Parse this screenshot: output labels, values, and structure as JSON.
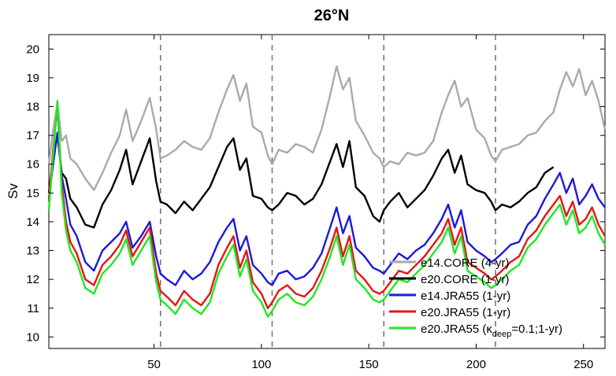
{
  "chart_data": {
    "type": "line",
    "title": "26°N",
    "xlabel": "",
    "ylabel": "Sv",
    "xlim": [
      1,
      260
    ],
    "ylim": [
      9.6,
      20.5
    ],
    "xticks": [
      50,
      100,
      150,
      200,
      250
    ],
    "yticks": [
      10,
      11,
      12,
      13,
      14,
      15,
      16,
      17,
      18,
      19,
      20
    ],
    "grid": false,
    "legend_position": "bottom-right",
    "cycle_boundaries": [
      53,
      105,
      157,
      209
    ],
    "series": [
      {
        "name": "e14.CORE (4-yr)",
        "color": "#aaaaaa",
        "label_main": "e14.CORE (4-yr)",
        "x": [
          1,
          3,
          5,
          7,
          9,
          11,
          14,
          18,
          22,
          26,
          30,
          34,
          37,
          40,
          44,
          48,
          51,
          53,
          56,
          60,
          64,
          68,
          72,
          76,
          80,
          84,
          87,
          90,
          93,
          96,
          100,
          103,
          105,
          108,
          112,
          116,
          120,
          124,
          128,
          132,
          135,
          138,
          141,
          144,
          148,
          152,
          155,
          157,
          160,
          164,
          168,
          172,
          176,
          180,
          184,
          187,
          190,
          193,
          196,
          200,
          204,
          207,
          209,
          212,
          216,
          220,
          224,
          228,
          232,
          236,
          239,
          242,
          245,
          248,
          251,
          254,
          257,
          260
        ],
        "y": [
          16.0,
          17.2,
          18.1,
          16.8,
          17.0,
          16.2,
          16.0,
          15.5,
          15.1,
          15.7,
          16.4,
          17.0,
          17.9,
          16.8,
          17.5,
          18.3,
          17.2,
          16.2,
          16.3,
          16.5,
          16.8,
          16.6,
          16.5,
          16.9,
          17.8,
          18.6,
          19.1,
          18.2,
          18.8,
          17.3,
          17.1,
          16.3,
          16.0,
          16.5,
          16.4,
          16.7,
          16.6,
          16.4,
          17.2,
          18.4,
          19.4,
          18.6,
          19.0,
          17.5,
          17.0,
          16.4,
          16.2,
          15.9,
          16.1,
          16.0,
          16.4,
          16.3,
          16.4,
          16.8,
          17.8,
          18.4,
          18.9,
          18.0,
          18.3,
          17.2,
          16.9,
          16.3,
          16.1,
          16.5,
          16.6,
          16.7,
          17.0,
          17.1,
          17.5,
          17.8,
          18.6,
          19.2,
          18.7,
          19.3,
          18.4,
          18.9,
          18.2,
          17.2
        ]
      },
      {
        "name": "e20.CORE (1-yr)",
        "color": "#000000",
        "label_main": "e20.CORE (1-yr)",
        "x": [
          1,
          3,
          5,
          7,
          9,
          11,
          14,
          18,
          22,
          26,
          30,
          34,
          37,
          40,
          44,
          48,
          51,
          53,
          56,
          60,
          64,
          68,
          72,
          76,
          80,
          84,
          87,
          90,
          93,
          96,
          100,
          103,
          105,
          108,
          112,
          116,
          120,
          124,
          128,
          132,
          135,
          138,
          141,
          144,
          148,
          152,
          155,
          157,
          160,
          164,
          168,
          172,
          176,
          180,
          184,
          187,
          190,
          193,
          196,
          200,
          204,
          207,
          209,
          212,
          216,
          220,
          224,
          228,
          232,
          236,
          239,
          242,
          245,
          248,
          251,
          254,
          257,
          260
        ],
        "y": [
          15.0,
          16.2,
          17.0,
          15.7,
          15.5,
          14.8,
          14.5,
          13.9,
          13.8,
          14.6,
          15.1,
          15.8,
          16.5,
          15.3,
          16.1,
          16.9,
          15.4,
          14.7,
          14.6,
          14.3,
          14.7,
          14.4,
          14.8,
          15.2,
          15.9,
          16.6,
          16.9,
          15.8,
          16.2,
          14.9,
          14.8,
          14.5,
          14.4,
          14.6,
          15.0,
          14.9,
          14.6,
          14.8,
          15.3,
          16.1,
          16.7,
          15.9,
          16.8,
          15.2,
          14.9,
          14.2,
          14.0,
          14.4,
          14.7,
          15.0,
          14.5,
          14.8,
          15.1,
          15.6,
          16.2,
          16.5,
          15.7,
          16.3,
          15.3,
          15.1,
          15.0,
          14.7,
          14.4,
          14.6,
          14.5,
          14.7,
          15.0,
          15.2,
          15.7,
          15.9,
          null,
          null,
          null,
          null,
          null,
          null,
          null,
          null
        ]
      },
      {
        "name": "e14.JRA55 (1-yr)",
        "color": "#1a1adc",
        "label_main": "e14.JRA55 (1-yr)",
        "x": [
          1,
          3,
          5,
          7,
          9,
          11,
          14,
          18,
          22,
          26,
          30,
          34,
          37,
          40,
          44,
          48,
          51,
          53,
          56,
          60,
          64,
          68,
          72,
          76,
          80,
          84,
          87,
          90,
          93,
          96,
          100,
          103,
          105,
          108,
          112,
          116,
          120,
          124,
          128,
          132,
          135,
          138,
          141,
          144,
          148,
          152,
          155,
          157,
          160,
          164,
          168,
          172,
          176,
          180,
          184,
          187,
          190,
          193,
          196,
          200,
          204,
          207,
          209,
          212,
          216,
          220,
          224,
          228,
          232,
          236,
          239,
          242,
          245,
          248,
          251,
          254,
          257,
          260
        ],
        "y": [
          14.8,
          16.0,
          17.1,
          15.6,
          14.8,
          13.9,
          13.5,
          12.6,
          12.3,
          13.0,
          13.3,
          13.6,
          14.0,
          13.1,
          13.5,
          14.0,
          12.8,
          12.2,
          12.0,
          11.8,
          12.3,
          12.0,
          12.2,
          12.6,
          13.3,
          13.8,
          14.1,
          13.0,
          13.5,
          12.5,
          12.2,
          11.9,
          11.8,
          12.2,
          12.3,
          12.0,
          12.1,
          12.4,
          12.9,
          13.8,
          14.5,
          13.6,
          14.2,
          13.1,
          12.8,
          12.4,
          12.3,
          12.2,
          12.5,
          12.9,
          12.7,
          13.0,
          13.2,
          13.6,
          14.1,
          14.6,
          13.8,
          14.4,
          13.3,
          13.0,
          12.8,
          12.6,
          12.7,
          12.9,
          13.2,
          13.3,
          13.9,
          14.2,
          14.8,
          15.3,
          15.7,
          15.0,
          15.5,
          14.6,
          14.9,
          15.3,
          14.8,
          14.5
        ]
      },
      {
        "name": "e20.JRA55 (1-yr)",
        "color": "#e61414",
        "label_main": "e20.JRA55 (1-yr)",
        "x": [
          1,
          3,
          5,
          7,
          9,
          11,
          14,
          18,
          22,
          26,
          30,
          34,
          37,
          40,
          44,
          48,
          51,
          53,
          56,
          60,
          64,
          68,
          72,
          76,
          80,
          84,
          87,
          90,
          93,
          96,
          100,
          103,
          105,
          108,
          112,
          116,
          120,
          124,
          128,
          132,
          135,
          138,
          141,
          144,
          148,
          152,
          155,
          157,
          160,
          164,
          168,
          172,
          176,
          180,
          184,
          187,
          190,
          193,
          196,
          200,
          204,
          207,
          209,
          212,
          216,
          220,
          224,
          228,
          232,
          236,
          239,
          242,
          245,
          248,
          251,
          254,
          257,
          260
        ],
        "y": [
          14.7,
          16.5,
          18.0,
          15.3,
          14.0,
          13.3,
          12.9,
          12.0,
          11.8,
          12.5,
          12.8,
          13.2,
          13.7,
          12.8,
          13.3,
          13.8,
          12.2,
          11.6,
          11.4,
          11.1,
          11.6,
          11.3,
          11.1,
          11.5,
          12.5,
          13.1,
          13.5,
          12.4,
          13.0,
          11.9,
          11.5,
          11.0,
          11.2,
          11.6,
          11.8,
          11.5,
          11.4,
          11.7,
          12.3,
          13.1,
          13.8,
          12.8,
          13.5,
          12.3,
          12.0,
          11.6,
          11.5,
          11.6,
          11.9,
          12.3,
          12.2,
          12.5,
          12.8,
          13.2,
          13.6,
          14.1,
          13.2,
          13.8,
          12.6,
          12.4,
          12.2,
          12.0,
          12.1,
          12.3,
          12.6,
          12.8,
          13.4,
          13.7,
          14.2,
          14.6,
          14.9,
          14.2,
          14.7,
          13.9,
          14.1,
          14.5,
          13.9,
          13.5
        ]
      },
      {
        "name": "e20.JRA55 (κdeep=0.1;1-yr)",
        "color": "#22e622",
        "label_main": "e20.JRA55 (κ",
        "label_sub": "deep",
        "label_tail": "=0.1;1-yr)",
        "x": [
          1,
          3,
          5,
          7,
          9,
          11,
          14,
          18,
          22,
          26,
          30,
          34,
          37,
          40,
          44,
          48,
          51,
          53,
          56,
          60,
          64,
          68,
          72,
          76,
          80,
          84,
          87,
          90,
          93,
          96,
          100,
          103,
          105,
          108,
          112,
          116,
          120,
          124,
          128,
          132,
          135,
          138,
          141,
          144,
          148,
          152,
          155,
          157,
          160,
          164,
          168,
          172,
          176,
          180,
          184,
          187,
          190,
          193,
          196,
          200,
          204,
          207,
          209,
          212,
          216,
          220,
          224,
          228,
          232,
          236,
          239,
          242,
          245,
          248,
          251,
          254,
          257,
          260
        ],
        "y": [
          14.4,
          16.3,
          18.2,
          15.0,
          13.7,
          13.0,
          12.6,
          11.7,
          11.5,
          12.2,
          12.5,
          12.9,
          13.4,
          12.5,
          13.0,
          13.5,
          11.9,
          11.3,
          11.1,
          10.8,
          11.3,
          11.0,
          10.8,
          11.2,
          12.2,
          12.8,
          13.2,
          12.1,
          12.7,
          11.6,
          11.2,
          10.7,
          10.9,
          11.3,
          11.5,
          11.2,
          11.1,
          11.4,
          12.0,
          12.8,
          13.5,
          12.5,
          13.2,
          12.0,
          11.7,
          11.3,
          11.2,
          11.3,
          11.6,
          12.0,
          11.9,
          12.2,
          12.5,
          12.9,
          13.3,
          13.8,
          12.9,
          13.5,
          12.3,
          12.1,
          11.9,
          11.7,
          11.8,
          12.0,
          12.3,
          12.5,
          13.1,
          13.4,
          13.9,
          14.3,
          14.6,
          13.9,
          14.4,
          13.6,
          13.8,
          14.2,
          13.6,
          13.2
        ]
      }
    ]
  }
}
